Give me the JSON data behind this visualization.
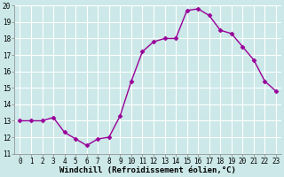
{
  "x": [
    0,
    1,
    2,
    3,
    4,
    5,
    6,
    7,
    8,
    9,
    10,
    11,
    12,
    13,
    14,
    15,
    16,
    17,
    18,
    19,
    20,
    21,
    22,
    23
  ],
  "y": [
    13.0,
    13.0,
    13.0,
    13.2,
    12.3,
    11.9,
    11.5,
    11.9,
    12.0,
    13.3,
    15.4,
    17.2,
    17.8,
    18.0,
    18.0,
    19.7,
    19.8,
    19.4,
    18.5,
    18.3,
    17.5,
    16.7,
    15.4,
    14.8
  ],
  "line_color": "#990099",
  "marker": "D",
  "marker_size": 2.5,
  "bg_color": "#cce8e8",
  "grid_color": "#ffffff",
  "xlabel": "Windchill (Refroidissement éolien,°C)",
  "xlim": [
    -0.5,
    23.5
  ],
  "ylim": [
    11,
    20
  ],
  "yticks": [
    11,
    12,
    13,
    14,
    15,
    16,
    17,
    18,
    19,
    20
  ],
  "xticks": [
    0,
    1,
    2,
    3,
    4,
    5,
    6,
    7,
    8,
    9,
    10,
    11,
    12,
    13,
    14,
    15,
    16,
    17,
    18,
    19,
    20,
    21,
    22,
    23
  ],
  "tick_fontsize": 5.5,
  "xlabel_fontsize": 6.5,
  "line_width": 1.0
}
